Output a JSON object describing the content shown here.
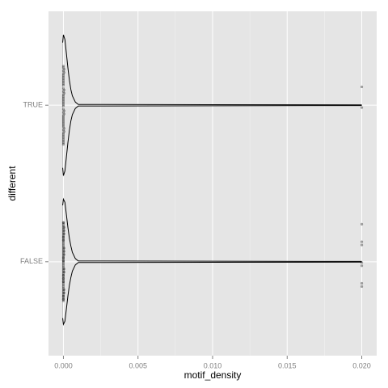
{
  "chart_data": {
    "type": "violin",
    "x_label": "motif_density",
    "y_label": "different",
    "xlim": [
      -0.001,
      0.021
    ],
    "xticks": [
      {
        "value": 0,
        "label": "0.000"
      },
      {
        "value": 0.005,
        "label": "0.005"
      },
      {
        "value": 0.01,
        "label": "0.010"
      },
      {
        "value": 0.015,
        "label": "0.015"
      },
      {
        "value": 0.02,
        "label": "0.020"
      }
    ],
    "grid": true,
    "violin_color": "#000000",
    "point_color": "#000000",
    "groups": [
      {
        "name": "TRUE",
        "density_x": [
          -5e-05,
          0,
          0.0001,
          0.0002,
          0.0003,
          0.0004,
          0.0005,
          0.0006,
          0.0008,
          0.001,
          0.02
        ],
        "density_width": [
          0.4,
          0.45,
          0.42,
          0.33,
          0.24,
          0.16,
          0.1,
          0.06,
          0.02,
          0.005,
          0.002
        ],
        "points": [
          0,
          0,
          0,
          0,
          0,
          0,
          0,
          0,
          0,
          0,
          0,
          0,
          0,
          0,
          0,
          0,
          0,
          0,
          0,
          0,
          0,
          0,
          0,
          0,
          0,
          0,
          0,
          0,
          0,
          0,
          0,
          0,
          0,
          0,
          0,
          0,
          0,
          0,
          0,
          0,
          5e-05,
          5e-05,
          5e-05,
          5e-05,
          5e-05,
          5e-05,
          5e-05,
          5e-05,
          0.02,
          0.02
        ]
      },
      {
        "name": "FALSE",
        "density_x": [
          -5e-05,
          0,
          0.0001,
          0.0002,
          0.0003,
          0.0004,
          0.0005,
          0.0006,
          0.0008,
          0.001,
          0.02
        ],
        "density_width": [
          0.36,
          0.4,
          0.38,
          0.3,
          0.22,
          0.15,
          0.1,
          0.06,
          0.02,
          0.005,
          0.002
        ],
        "points": [
          0,
          0,
          0,
          0,
          0,
          0,
          0,
          0,
          0,
          0,
          0,
          0,
          0,
          0,
          0,
          0,
          0,
          0,
          0,
          0,
          0,
          0,
          0,
          0,
          0,
          0,
          0,
          0,
          0,
          0,
          0,
          0,
          0,
          0,
          0,
          0,
          0,
          0,
          0,
          0,
          0,
          0,
          0,
          0,
          0,
          0,
          0,
          0,
          0,
          0,
          0,
          0,
          0,
          0,
          0,
          0,
          0,
          0,
          0,
          0,
          5e-05,
          5e-05,
          5e-05,
          5e-05,
          5e-05,
          5e-05,
          5e-05,
          5e-05,
          5e-05,
          5e-05,
          0.02,
          0.02,
          0.02,
          0.02,
          0.02,
          0.02,
          0.02
        ]
      }
    ]
  }
}
